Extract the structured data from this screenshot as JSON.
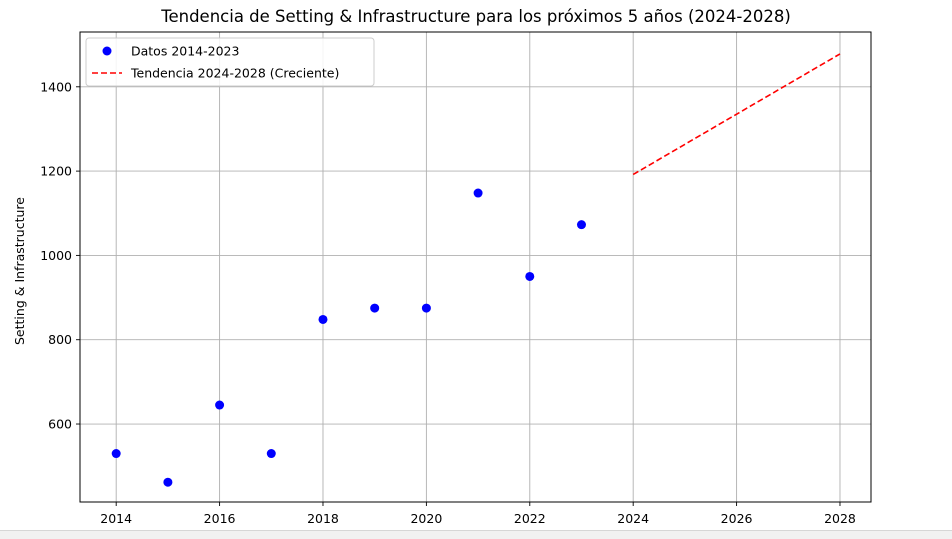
{
  "chart_data": {
    "type": "scatter",
    "title": "Tendencia de Setting & Infrastructure para los próximos 5 años (2024-2028)",
    "xlabel": "",
    "ylabel": "Setting & Infrastructure",
    "xlim": [
      2013.3,
      2028.6
    ],
    "ylim": [
      415,
      1530
    ],
    "xticks": [
      2014,
      2016,
      2018,
      2020,
      2022,
      2024,
      2026,
      2028
    ],
    "yticks": [
      600,
      800,
      1000,
      1200,
      1400
    ],
    "grid": true,
    "legend_position": "top-left",
    "series": [
      {
        "name": "Datos 2014-2023",
        "kind": "scatter",
        "color": "#0000ff",
        "x": [
          2014,
          2015,
          2016,
          2017,
          2018,
          2019,
          2020,
          2021,
          2022,
          2023
        ],
        "y": [
          530,
          462,
          645,
          530,
          848,
          875,
          875,
          1148,
          950,
          1073
        ]
      },
      {
        "name": "Tendencia 2024-2028 (Creciente)",
        "kind": "line",
        "style": "dashed",
        "color": "#ff0000",
        "x": [
          2024,
          2028
        ],
        "y": [
          1192,
          1478
        ]
      }
    ]
  }
}
